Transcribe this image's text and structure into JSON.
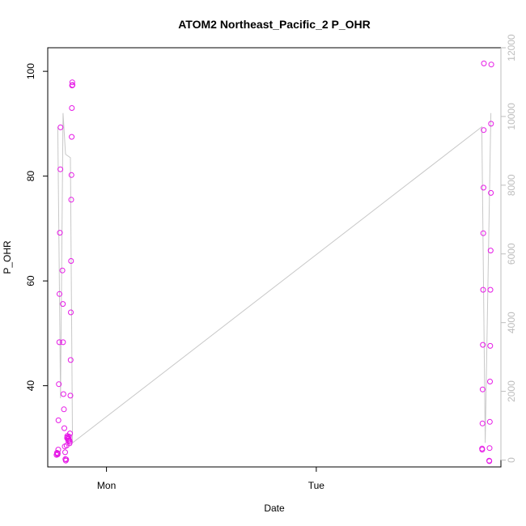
{
  "chart_data": {
    "type": "scatter",
    "title": "ATOM2 Northeast_Pacific_2 P_OHR",
    "xlabel": "Date",
    "ylabel": "P_OHR",
    "x_ticks": [
      "Mon",
      "Tue"
    ],
    "ylim": [
      24.5,
      104.5
    ],
    "y_ticks": [
      40,
      60,
      80,
      100
    ],
    "y2lim": [
      -200,
      12000
    ],
    "y2_ticks": [
      0,
      2000,
      4000,
      6000,
      8000,
      10000,
      12000
    ],
    "colors": {
      "points": "#e619e6",
      "line": "#c8c8c8",
      "right_axis": "#bdbdbd"
    },
    "series": [
      {
        "kind": "points",
        "x_unit": "days after Mon 00:00 (negative = Sun)",
        "points": [
          [
            -0.238,
            26.8
          ],
          [
            -0.236,
            27.2
          ],
          [
            -0.235,
            27.0
          ],
          [
            -0.233,
            26.9
          ],
          [
            -0.232,
            27.1
          ],
          [
            -0.23,
            27.8
          ],
          [
            -0.229,
            33.4
          ],
          [
            -0.227,
            40.3
          ],
          [
            -0.225,
            48.3
          ],
          [
            -0.224,
            57.5
          ],
          [
            -0.222,
            69.2
          ],
          [
            -0.22,
            81.3
          ],
          [
            -0.219,
            89.3
          ],
          [
            -0.21,
            62.0
          ],
          [
            -0.208,
            55.6
          ],
          [
            -0.207,
            48.3
          ],
          [
            -0.205,
            38.4
          ],
          [
            -0.203,
            35.5
          ],
          [
            -0.201,
            31.9
          ],
          [
            -0.199,
            28.4
          ],
          [
            -0.197,
            27.3
          ],
          [
            -0.196,
            26.0
          ],
          [
            -0.194,
            25.7
          ],
          [
            -0.192,
            25.9
          ],
          [
            -0.19,
            28.6
          ],
          [
            -0.188,
            30.0
          ],
          [
            -0.187,
            30.4
          ],
          [
            -0.185,
            30.2
          ],
          [
            -0.184,
            29.8
          ],
          [
            -0.182,
            29.5
          ],
          [
            -0.18,
            29.9
          ],
          [
            -0.179,
            30.3
          ],
          [
            -0.177,
            29.6
          ],
          [
            -0.176,
            29.0
          ],
          [
            -0.175,
            29.3
          ],
          [
            -0.174,
            30.9
          ],
          [
            -0.172,
            38.1
          ],
          [
            -0.171,
            44.9
          ],
          [
            -0.17,
            54.0
          ],
          [
            -0.169,
            63.8
          ],
          [
            -0.168,
            75.5
          ],
          [
            -0.167,
            80.2
          ],
          [
            -0.166,
            87.5
          ],
          [
            -0.165,
            93.0
          ],
          [
            -0.164,
            97.3
          ],
          [
            -0.163,
            97.9
          ],
          [
            -0.162,
            97.4
          ],
          [
            1.79,
            28.0
          ],
          [
            1.791,
            27.8
          ],
          [
            1.792,
            32.8
          ],
          [
            1.793,
            39.3
          ],
          [
            1.794,
            47.8
          ],
          [
            1.795,
            58.3
          ],
          [
            1.796,
            69.1
          ],
          [
            1.797,
            77.8
          ],
          [
            1.798,
            88.8
          ],
          [
            1.799,
            101.5
          ],
          [
            1.824,
            25.7
          ],
          [
            1.825,
            25.6
          ],
          [
            1.826,
            28.1
          ],
          [
            1.827,
            33.1
          ],
          [
            1.828,
            40.8
          ],
          [
            1.829,
            47.6
          ],
          [
            1.83,
            58.3
          ],
          [
            1.831,
            65.8
          ],
          [
            1.832,
            76.8
          ],
          [
            1.833,
            90.0
          ],
          [
            1.834,
            101.3
          ]
        ]
      },
      {
        "kind": "line",
        "axis": "right",
        "x_unit": "days after Mon 00:00 (negative = Sun)",
        "points": [
          [
            -0.232,
            9700
          ],
          [
            -0.219,
            1800
          ],
          [
            -0.207,
            10100
          ],
          [
            -0.195,
            8900
          ],
          [
            -0.172,
            8800
          ],
          [
            -0.162,
            500
          ],
          [
            1.789,
            9700
          ],
          [
            1.805,
            500
          ],
          [
            1.832,
            10100
          ]
        ]
      }
    ]
  }
}
